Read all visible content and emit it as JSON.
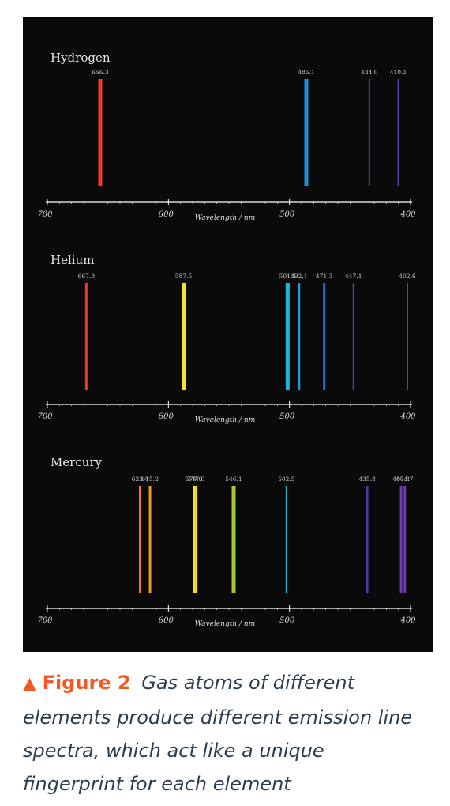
{
  "caption": {
    "triangle": "▲",
    "figure_label": "Figure 2",
    "text": "Gas atoms of different elements produce different emission line spectra, which act like a unique fingerprint for each element"
  },
  "colors": {
    "panel_background": "#0a0a0a",
    "axis": "#ffffff",
    "accent": "#f15a24",
    "caption_text": "#2c3d4e"
  },
  "chart_data": [
    {
      "type": "spectrum",
      "title": "Hydrogen",
      "xlabel": "Wavelength / nm",
      "xlim": [
        700,
        400
      ],
      "ticks": [
        "700",
        "600",
        "500",
        "400"
      ],
      "lines": [
        {
          "wavelength": 656.3,
          "label": "656.3",
          "color": "#f03a24",
          "width": "thick"
        },
        {
          "wavelength": 486.1,
          "label": "486.1",
          "color": "#1e90d8",
          "width": "thick"
        },
        {
          "wavelength": 434.0,
          "label": "434.0",
          "color": "#4b3ca8",
          "width": "thin"
        },
        {
          "wavelength": 410.1,
          "label": "410.1",
          "color": "#5b3aa8",
          "width": "thin"
        }
      ]
    },
    {
      "type": "spectrum",
      "title": "Helium",
      "xlabel": "Wavelength / nm",
      "xlim": [
        700,
        400
      ],
      "ticks": [
        "700",
        "600",
        "500",
        "400"
      ],
      "lines": [
        {
          "wavelength": 667.8,
          "label": "667.8",
          "color": "#f03a24",
          "width": "medium"
        },
        {
          "wavelength": 587.5,
          "label": "587.5",
          "color": "#f5e13a",
          "width": "thick"
        },
        {
          "wavelength": 501.5,
          "label": "501.5",
          "color": "#1ab8d8",
          "width": "thick"
        },
        {
          "wavelength": 492.1,
          "label": "492.1",
          "color": "#1a9ad8",
          "width": "medium"
        },
        {
          "wavelength": 471.3,
          "label": "471.3",
          "color": "#2e6ec8",
          "width": "medium"
        },
        {
          "wavelength": 447.1,
          "label": "447.1",
          "color": "#3e4eb8",
          "width": "thin"
        },
        {
          "wavelength": 402.6,
          "label": "402.6",
          "color": "#6a3aa8",
          "width": "thin"
        }
      ]
    },
    {
      "type": "spectrum",
      "title": "Mercury",
      "xlabel": "Wavelength / nm",
      "xlim": [
        700,
        400
      ],
      "ticks": [
        "700",
        "600",
        "500",
        "400"
      ],
      "lines": [
        {
          "wavelength": 623.4,
          "label": "623.4",
          "color": "#f07a24",
          "width": "medium"
        },
        {
          "wavelength": 615.2,
          "label": "615.2",
          "color": "#f09a24",
          "width": "medium"
        },
        {
          "wavelength": 579.0,
          "label": "579.0",
          "color": "#f5e13a",
          "width": "medium"
        },
        {
          "wavelength": 577.0,
          "label": "577.0",
          "color": "#f5e13a",
          "width": "medium"
        },
        {
          "wavelength": 546.1,
          "label": "546.1",
          "color": "#a6c83a",
          "width": "thick"
        },
        {
          "wavelength": 502.5,
          "label": "502.5",
          "color": "#1ab8c8",
          "width": "thin"
        },
        {
          "wavelength": 435.8,
          "label": "435.8",
          "color": "#4b3ca8",
          "width": "medium"
        },
        {
          "wavelength": 407.8,
          "label": "407.8",
          "color": "#6a3ab0",
          "width": "medium"
        },
        {
          "wavelength": 404.7,
          "label": "404.7",
          "color": "#6a3ab0",
          "width": "medium"
        }
      ]
    }
  ]
}
